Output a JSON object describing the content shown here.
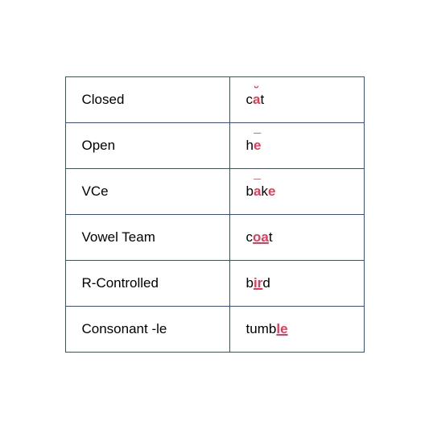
{
  "table": {
    "border_color": "#2952a3",
    "highlight_color": "#e83a57",
    "text_color": "#000000",
    "background_color": "#ffffff",
    "font_size": 17,
    "rows": [
      {
        "label": "Closed",
        "parts": {
          "p0": "c",
          "p1": "a",
          "p2": "t"
        },
        "word": "cat",
        "diacritic": "breve",
        "highlight_letters": "a"
      },
      {
        "label": "Open",
        "parts": {
          "p0": "h",
          "p1": "e"
        },
        "word": "he",
        "diacritic": "macron",
        "highlight_letters": "e"
      },
      {
        "label": "VCe",
        "parts": {
          "p0": "b",
          "p1": "a",
          "p2": "k",
          "p3": "e"
        },
        "word": "bake",
        "diacritic": "macron",
        "highlight_letters": "a,e"
      },
      {
        "label": "Vowel Team",
        "parts": {
          "p0": "c",
          "p1": "oa",
          "p2": "t"
        },
        "word": "coat",
        "diacritic": "underline",
        "highlight_letters": "oa"
      },
      {
        "label": "R-Controlled",
        "parts": {
          "p0": "b",
          "p1": "ir",
          "p2": "d"
        },
        "word": "bird",
        "diacritic": "underline",
        "highlight_letters": "ir"
      },
      {
        "label": "Consonant -le",
        "parts": {
          "p0": "tumb",
          "p1": "le"
        },
        "word": "tumble",
        "diacritic": "underline",
        "highlight_letters": "le"
      }
    ]
  }
}
